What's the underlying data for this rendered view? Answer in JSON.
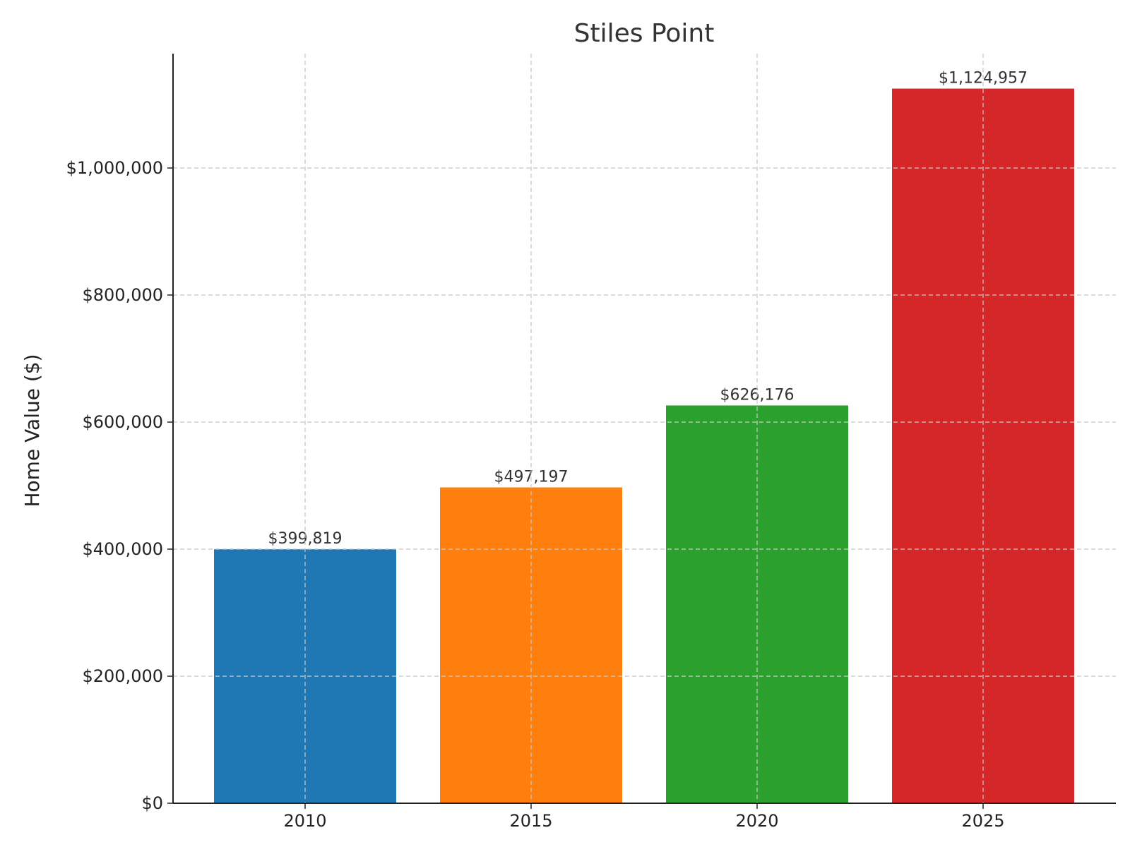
{
  "chart_data": {
    "type": "bar",
    "title": "Stiles Point",
    "xlabel": "",
    "ylabel": "Home Value ($)",
    "categories": [
      "2010",
      "2015",
      "2020",
      "2025"
    ],
    "values": [
      399819,
      497197,
      626176,
      1124957
    ],
    "value_labels": [
      "$399,819",
      "$497,197",
      "$626,176",
      "$1,124,957"
    ],
    "colors": [
      "#1f77b4",
      "#ff7f0e",
      "#2ca02c",
      "#d62728"
    ],
    "ylim": [
      0,
      1180000
    ],
    "yticks": [
      0,
      200000,
      400000,
      600000,
      800000,
      1000000
    ],
    "ytick_labels": [
      "$0",
      "$200,000",
      "$400,000",
      "$600,000",
      "$800,000",
      "$1,000,000"
    ],
    "grid": true,
    "legend": false
  }
}
